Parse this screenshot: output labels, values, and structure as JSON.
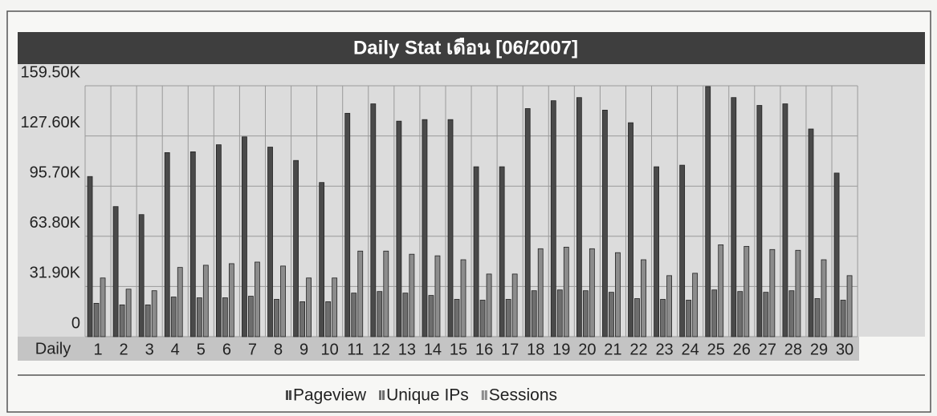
{
  "chart_data": {
    "type": "bar",
    "title": "Daily Stat เดือน [06/2007]",
    "x_label": "Daily",
    "categories": [
      "1",
      "2",
      "3",
      "4",
      "5",
      "6",
      "7",
      "8",
      "9",
      "10",
      "11",
      "12",
      "13",
      "14",
      "15",
      "16",
      "17",
      "18",
      "19",
      "20",
      "21",
      "22",
      "23",
      "24",
      "25",
      "26",
      "27",
      "28",
      "29",
      "30"
    ],
    "series": [
      {
        "name": "Pageview",
        "color": "#4a4a4a",
        "values": [
          101800,
          82700,
          77600,
          117000,
          117500,
          122000,
          127000,
          120500,
          112000,
          98000,
          142000,
          148000,
          137000,
          138000,
          138000,
          108000,
          108000,
          145000,
          150000,
          152000,
          144000,
          136000,
          108000,
          109000,
          159000,
          152000,
          147000,
          148000,
          132000,
          104000
        ]
      },
      {
        "name": "Unique IPs",
        "color": "#6e6e6e",
        "values": [
          21200,
          20200,
          20200,
          25200,
          24700,
          24700,
          25700,
          23700,
          22200,
          22200,
          27700,
          28700,
          27700,
          26200,
          23700,
          23200,
          23700,
          29200,
          29700,
          29200,
          28200,
          24200,
          23700,
          23200,
          29700,
          28700,
          28200,
          29200,
          24200,
          23200
        ]
      },
      {
        "name": "Sessions",
        "color": "#8c8c8c",
        "values": [
          37300,
          30200,
          29200,
          44000,
          45400,
          46400,
          47400,
          44900,
          37300,
          37300,
          54400,
          54400,
          52400,
          51400,
          48900,
          39800,
          39800,
          55900,
          56900,
          55900,
          53400,
          48900,
          38800,
          40300,
          58400,
          57400,
          55400,
          54900,
          48900,
          38800
        ]
      }
    ],
    "ylim": [
      0,
      159500
    ],
    "yticks": [
      0,
      {
        "value": 31900,
        "label": "31.90K"
      },
      {
        "value": 63800,
        "label": "63.80K"
      },
      {
        "value": 95700,
        "label": "95.70K"
      },
      {
        "value": 127600,
        "label": "127.60K"
      },
      {
        "value": 159500,
        "label": "159.50K"
      }
    ],
    "grid": true
  }
}
